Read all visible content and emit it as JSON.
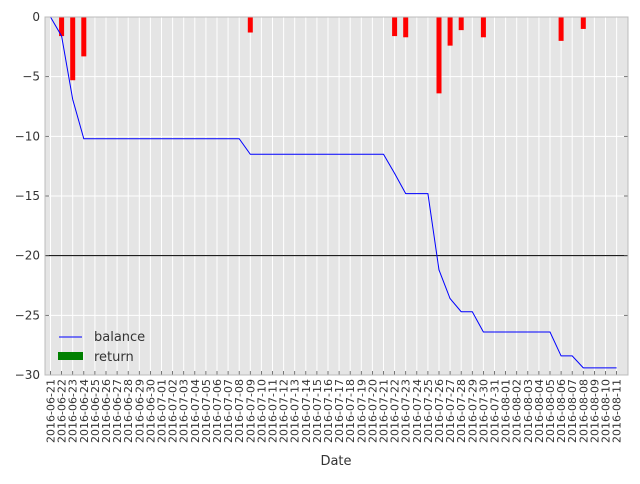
{
  "chart_data": {
    "type": "bar",
    "xlabel": "Date",
    "ylabel": "",
    "ylim": [
      -30,
      0
    ],
    "yticks": [
      0,
      -5,
      -10,
      -15,
      -20,
      -25,
      -30
    ],
    "ytick_labels": [
      "0",
      "−5",
      "−10",
      "−15",
      "−20",
      "−25",
      "−30"
    ],
    "grid": true,
    "legend_placement": "lower-left",
    "reference_line": -20,
    "categories": [
      "2016-06-21",
      "2016-06-22",
      "2016-06-23",
      "2016-06-24",
      "2016-06-25",
      "2016-06-26",
      "2016-06-27",
      "2016-06-28",
      "2016-06-29",
      "2016-06-30",
      "2016-07-01",
      "2016-07-02",
      "2016-07-03",
      "2016-07-04",
      "2016-07-05",
      "2016-07-06",
      "2016-07-07",
      "2016-07-08",
      "2016-07-09",
      "2016-07-10",
      "2016-07-11",
      "2016-07-12",
      "2016-07-13",
      "2016-07-14",
      "2016-07-15",
      "2016-07-16",
      "2016-07-17",
      "2016-07-18",
      "2016-07-19",
      "2016-07-20",
      "2016-07-21",
      "2016-07-22",
      "2016-07-23",
      "2016-07-24",
      "2016-07-25",
      "2016-07-26",
      "2016-07-27",
      "2016-07-28",
      "2016-07-29",
      "2016-07-30",
      "2016-07-31",
      "2016-08-01",
      "2016-08-02",
      "2016-08-03",
      "2016-08-04",
      "2016-08-05",
      "2016-08-06",
      "2016-08-07",
      "2016-08-08",
      "2016-08-09",
      "2016-08-10",
      "2016-08-11"
    ],
    "series": [
      {
        "name": "balance",
        "type": "line",
        "color": "#0000ff",
        "values": [
          0,
          -1.6,
          -6.9,
          -10.2,
          -10.2,
          -10.2,
          -10.2,
          -10.2,
          -10.2,
          -10.2,
          -10.2,
          -10.2,
          -10.2,
          -10.2,
          -10.2,
          -10.2,
          -10.2,
          -10.2,
          -11.5,
          -11.5,
          -11.5,
          -11.5,
          -11.5,
          -11.5,
          -11.5,
          -11.5,
          -11.5,
          -11.5,
          -11.5,
          -11.5,
          -11.5,
          -13.1,
          -14.8,
          -14.8,
          -14.8,
          -21.2,
          -23.6,
          -24.7,
          -24.7,
          -26.4,
          -26.4,
          -26.4,
          -26.4,
          -26.4,
          -26.4,
          -26.4,
          -28.4,
          -28.4,
          -29.4,
          -29.4,
          -29.4,
          -29.4
        ]
      },
      {
        "name": "return",
        "type": "bar",
        "color": "#008000",
        "negative_color": "#ff0000",
        "values": [
          0,
          -1.6,
          -5.3,
          -3.3,
          0,
          0,
          0,
          0,
          0,
          0,
          0,
          0,
          0,
          0,
          0,
          0,
          0,
          0,
          -1.3,
          0,
          0,
          0,
          0,
          0,
          0,
          0,
          0,
          0,
          0,
          0,
          0,
          -1.6,
          -1.7,
          0,
          0,
          -6.4,
          -2.4,
          -1.1,
          0,
          -1.7,
          0,
          0,
          0,
          0,
          0,
          0,
          -2.0,
          0,
          -1.0,
          0,
          0,
          0
        ]
      }
    ]
  }
}
